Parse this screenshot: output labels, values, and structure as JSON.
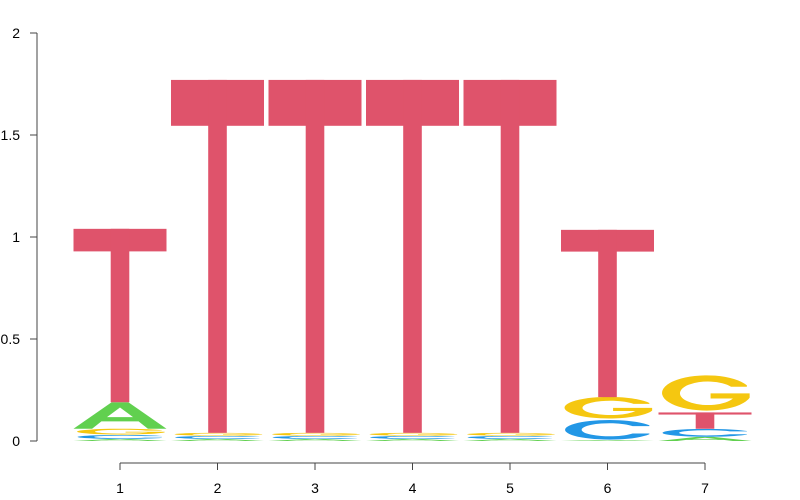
{
  "chart_data": {
    "type": "sequence-logo",
    "ylim": [
      0,
      2
    ],
    "y_ticks": [
      "0",
      "0.5",
      "1",
      "1.5",
      "2"
    ],
    "x_ticks": [
      "1",
      "2",
      "3",
      "4",
      "5",
      "6",
      "7"
    ],
    "colors": {
      "A": "#61d04f",
      "C": "#2297e6",
      "G": "#f5c710",
      "T": "#df536b"
    },
    "positions": [
      {
        "label": "1",
        "letters": [
          {
            "base": "A",
            "height": 0.01
          },
          {
            "base": "C",
            "height": 0.02
          },
          {
            "base": "G",
            "height": 0.03
          },
          {
            "base": "A",
            "height": 0.13
          },
          {
            "base": "T",
            "height": 0.85
          }
        ]
      },
      {
        "label": "2",
        "letters": [
          {
            "base": "A",
            "height": 0.01
          },
          {
            "base": "C",
            "height": 0.015
          },
          {
            "base": "G",
            "height": 0.015
          },
          {
            "base": "T",
            "height": 1.73
          }
        ]
      },
      {
        "label": "3",
        "letters": [
          {
            "base": "A",
            "height": 0.01
          },
          {
            "base": "C",
            "height": 0.015
          },
          {
            "base": "G",
            "height": 0.015
          },
          {
            "base": "T",
            "height": 1.73
          }
        ]
      },
      {
        "label": "4",
        "letters": [
          {
            "base": "A",
            "height": 0.01
          },
          {
            "base": "C",
            "height": 0.015
          },
          {
            "base": "G",
            "height": 0.015
          },
          {
            "base": "T",
            "height": 1.73
          }
        ]
      },
      {
        "label": "5",
        "letters": [
          {
            "base": "A",
            "height": 0.01
          },
          {
            "base": "C",
            "height": 0.015
          },
          {
            "base": "G",
            "height": 0.015
          },
          {
            "base": "T",
            "height": 1.73
          }
        ]
      },
      {
        "label": "6",
        "letters": [
          {
            "base": "A",
            "height": 0.005
          },
          {
            "base": "C",
            "height": 0.1
          },
          {
            "base": "G",
            "height": 0.11
          },
          {
            "base": "T",
            "height": 0.82
          }
        ]
      },
      {
        "label": "7",
        "letters": [
          {
            "base": "A",
            "height": 0.02
          },
          {
            "base": "C",
            "height": 0.04
          },
          {
            "base": "T",
            "height": 0.08
          },
          {
            "base": "G",
            "height": 0.18
          }
        ]
      }
    ]
  }
}
